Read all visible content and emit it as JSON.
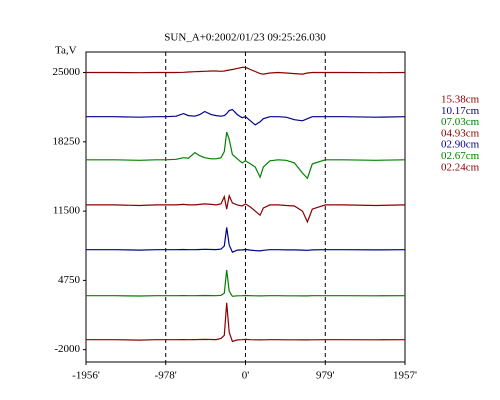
{
  "chart_data": {
    "type": "line",
    "title": "SUN_A+0:2002/01/23 09:25:26.030",
    "y_label": "Ta,V",
    "x": [
      -1956,
      -1600,
      -1300,
      -1100,
      -978,
      -850,
      -760,
      -700,
      -620,
      -560,
      -500,
      -420,
      -360,
      -300,
      -260,
      -230,
      -200,
      -160,
      -100,
      -40,
      0,
      60,
      120,
      180,
      220,
      300,
      400,
      500,
      600,
      700,
      760,
      820,
      979,
      1200,
      1600,
      1957
    ],
    "series": [
      {
        "name": "15.38cm",
        "color": "#8b0000",
        "values": [
          25000,
          25000,
          24980,
          25000,
          25000,
          25000,
          25020,
          25050,
          25080,
          25100,
          25120,
          25150,
          25150,
          25120,
          25150,
          25200,
          25250,
          25300,
          25400,
          25500,
          25500,
          25300,
          25100,
          24900,
          24850,
          24950,
          25000,
          24950,
          24900,
          24850,
          24950,
          25000,
          25000,
          25000,
          24980,
          25000
        ]
      },
      {
        "name": "10.17cm",
        "color": "#00008b",
        "values": [
          20700,
          20700,
          20650,
          20700,
          20700,
          20750,
          21000,
          20800,
          20750,
          20900,
          21200,
          20900,
          20800,
          20750,
          20800,
          21000,
          21300,
          21400,
          20900,
          20600,
          20700,
          20300,
          19900,
          20200,
          20500,
          20700,
          20700,
          20650,
          20400,
          20300,
          20500,
          20700,
          20700,
          20700,
          20650,
          20700
        ]
      },
      {
        "name": "07.03cm",
        "color": "#008000",
        "values": [
          16500,
          16500,
          16450,
          16500,
          16500,
          16550,
          16700,
          16650,
          17200,
          16900,
          16700,
          16600,
          16600,
          16700,
          17300,
          19200,
          18500,
          17000,
          16600,
          16200,
          16400,
          16100,
          15800,
          14800,
          15800,
          16400,
          16500,
          16450,
          16200,
          15200,
          14700,
          16100,
          16500,
          16500,
          16450,
          16500
        ]
      },
      {
        "name": "04.93cm",
        "color": "#8b0000",
        "values": [
          12100,
          12100,
          12050,
          12100,
          12100,
          12100,
          12150,
          12100,
          12100,
          12150,
          12200,
          12150,
          12100,
          12200,
          12900,
          11700,
          13000,
          12300,
          12100,
          12000,
          12200,
          11900,
          11500,
          11100,
          11800,
          12100,
          12100,
          12050,
          12000,
          11500,
          10450,
          11700,
          12100,
          12100,
          12050,
          12100
        ]
      },
      {
        "name": "02.90cm",
        "color": "#00008b",
        "values": [
          7740,
          7740,
          7700,
          7740,
          7740,
          7740,
          7760,
          7740,
          7740,
          7760,
          7780,
          7760,
          7750,
          7800,
          8100,
          9900,
          8200,
          7500,
          7700,
          7720,
          7760,
          7700,
          7650,
          7620,
          7680,
          7740,
          7740,
          7720,
          7720,
          7700,
          7680,
          7720,
          7740,
          7740,
          7720,
          7740
        ]
      },
      {
        "name": "02.67cm",
        "color": "#008000",
        "values": [
          3260,
          3260,
          3230,
          3260,
          3260,
          3260,
          3270,
          3260,
          3260,
          3270,
          3280,
          3270,
          3260,
          3300,
          3500,
          5760,
          3700,
          3200,
          3250,
          3260,
          3280,
          3260,
          3250,
          3240,
          3250,
          3260,
          3260,
          3250,
          3250,
          3240,
          3240,
          3260,
          3260,
          3260,
          3250,
          3260
        ]
      },
      {
        "name": "02.24cm",
        "color": "#8b0000",
        "values": [
          -1030,
          -1030,
          -1070,
          -1030,
          -1030,
          -1030,
          -1020,
          -1030,
          -1020,
          -1010,
          -1000,
          -1010,
          -1020,
          -900,
          -600,
          2570,
          -300,
          -1200,
          -1050,
          -1030,
          -1000,
          -1030,
          -1040,
          -1050,
          -1040,
          -1030,
          -1030,
          -1040,
          -1040,
          -1050,
          -1050,
          -1040,
          -1030,
          -1030,
          -1040,
          -1030
        ]
      }
    ],
    "xlim": [
      -1956,
      1957
    ],
    "xticks": [
      {
        "value": -1956,
        "label": "-1956'"
      },
      {
        "value": -978,
        "label": "-978'"
      },
      {
        "value": 0,
        "label": "0'"
      },
      {
        "value": 979,
        "label": "979'"
      },
      {
        "value": 1957,
        "label": "1957'"
      }
    ],
    "ylim": [
      -3200,
      27000
    ],
    "yticks": [
      -2000,
      4750,
      11500,
      18250,
      25000
    ],
    "grid": true,
    "legend": "right"
  }
}
